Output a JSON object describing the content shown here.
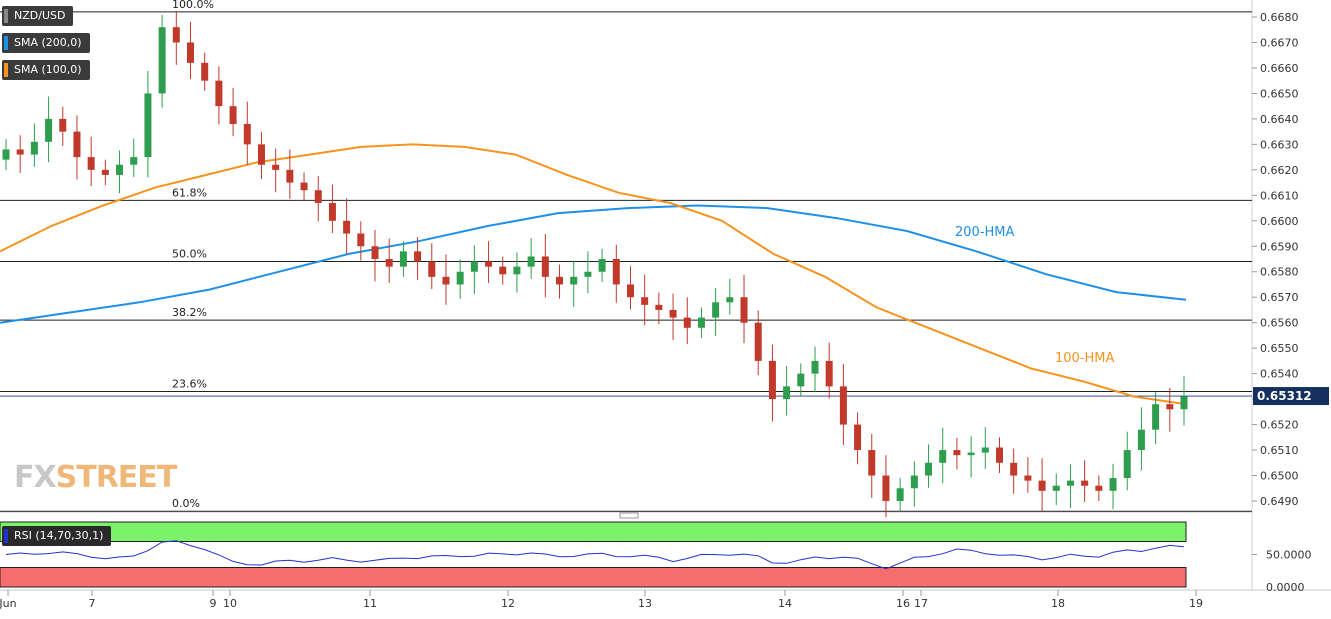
{
  "chart_data": {
    "type": "candlestick",
    "symbol": "NZD/USD",
    "indicators": [
      {
        "label": "SMA (200,0)",
        "color": "#1e90e8"
      },
      {
        "label": "SMA (100,0)",
        "color": "#f7931e"
      }
    ],
    "line_labels": {
      "hma200": "200-HMA",
      "hma100": "100-HMA"
    },
    "price_axis": {
      "min": 0.6485,
      "max": 0.6685,
      "ticks": [
        "0.6680",
        "0.6670",
        "0.6660",
        "0.6650",
        "0.6640",
        "0.6630",
        "0.6620",
        "0.6610",
        "0.6600",
        "0.6590",
        "0.6580",
        "0.6570",
        "0.6560",
        "0.6550",
        "0.6540",
        "0.6530",
        "0.6520",
        "0.6510",
        "0.6500",
        "0.6490"
      ]
    },
    "current_price": "0.65312",
    "fib_levels": [
      {
        "label": "100.0%",
        "price": 0.6682
      },
      {
        "label": "61.8%",
        "price": 0.6608
      },
      {
        "label": "50.0%",
        "price": 0.6584
      },
      {
        "label": "38.2%",
        "price": 0.6561
      },
      {
        "label": "23.6%",
        "price": 0.6533
      },
      {
        "label": "0.0%",
        "price": 0.6486
      }
    ],
    "x_labels": [
      "Jun",
      "7",
      "9",
      "10",
      "11",
      "12",
      "13",
      "14",
      "16",
      "17",
      "18",
      "19"
    ],
    "hma100": [
      0.6588,
      0.6598,
      0.6606,
      0.6613,
      0.6618,
      0.6623,
      0.6626,
      0.6629,
      0.663,
      0.6629,
      0.6626,
      0.6618,
      0.6611,
      0.6607,
      0.66,
      0.6587,
      0.6578,
      0.6566,
      0.6558,
      0.655,
      0.6542,
      0.6537,
      0.6531,
      0.6528
    ],
    "hma200": [
      0.656,
      0.6564,
      0.6568,
      0.6573,
      0.658,
      0.6587,
      0.6592,
      0.6598,
      0.6603,
      0.6605,
      0.6606,
      0.6605,
      0.6601,
      0.6596,
      0.6588,
      0.6579,
      0.6572,
      0.6569
    ],
    "close": [
      0.6628,
      0.6626,
      0.6631,
      0.664,
      0.6635,
      0.6625,
      0.662,
      0.6618,
      0.6622,
      0.6625,
      0.665,
      0.6676,
      0.667,
      0.6662,
      0.6655,
      0.6645,
      0.6638,
      0.663,
      0.6622,
      0.662,
      0.6615,
      0.6612,
      0.6607,
      0.66,
      0.6595,
      0.659,
      0.6585,
      0.6582,
      0.6588,
      0.6584,
      0.6578,
      0.6575,
      0.658,
      0.6584,
      0.6582,
      0.6579,
      0.6582,
      0.6586,
      0.6578,
      0.6575,
      0.6578,
      0.658,
      0.6585,
      0.6575,
      0.657,
      0.6567,
      0.6565,
      0.6562,
      0.6558,
      0.6562,
      0.6568,
      0.657,
      0.656,
      0.6545,
      0.653,
      0.6535,
      0.654,
      0.6545,
      0.6535,
      0.652,
      0.651,
      0.65,
      0.649,
      0.6495,
      0.65,
      0.6505,
      0.651,
      0.6508,
      0.6509,
      0.6511,
      0.6505,
      0.65,
      0.6498,
      0.6494,
      0.6496,
      0.6498,
      0.6496,
      0.6494,
      0.6499,
      0.651,
      0.6518,
      0.6528,
      0.6526,
      0.6531
    ],
    "rsi": {
      "label": "RSI (14,70,30,1)",
      "overbought": 70,
      "oversold": 30,
      "ticks": [
        "50.0000",
        "0.0000"
      ]
    },
    "colors": {
      "up": "#2e9e4e",
      "down": "#c0392b",
      "hma100": "#f7931e",
      "hma200": "#1e90e8",
      "overbought": "#7cf26a",
      "oversold": "#f76c6c",
      "rsi": "#2233cc"
    }
  }
}
